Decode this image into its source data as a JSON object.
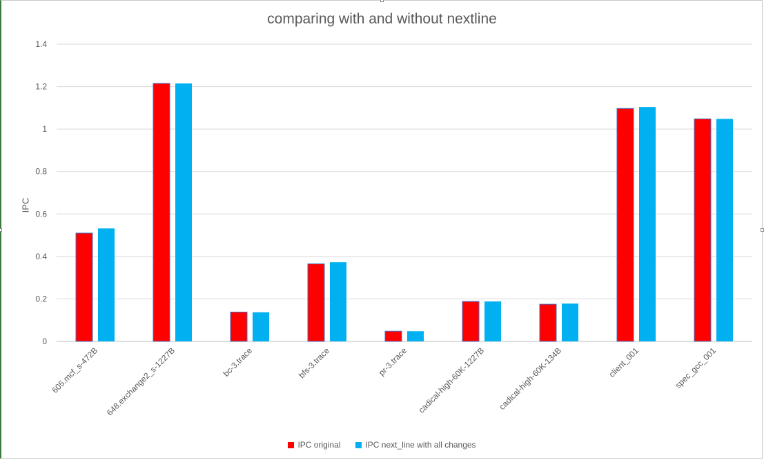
{
  "chart_data": {
    "type": "bar",
    "title": "comparing with and without nextline",
    "ylabel": "IPC",
    "xlabel": "",
    "ylim": [
      0,
      1.4
    ],
    "yticks": [
      "0",
      "0.2",
      "0.4",
      "0.6",
      "0.8",
      "1",
      "1.2",
      "1.4"
    ],
    "grid": true,
    "legend_position": "bottom",
    "categories": [
      "605.mcf_s-472B",
      "648.exchange2_s-1227B",
      "bc-3.trace",
      "bfs-3.trace",
      "pr-3.trace",
      "cadical-high-60K-1227B",
      "cadical-high-60K-134B",
      "client_001",
      "spec_gcc_001"
    ],
    "series": [
      {
        "name": "IPC original",
        "color": "#ff0000",
        "values": [
          0.51,
          1.215,
          0.138,
          0.365,
          0.048,
          0.188,
          0.175,
          1.097,
          1.048
        ]
      },
      {
        "name": "IPC next_line with all changes",
        "color": "#00b0f0",
        "values": [
          0.532,
          1.215,
          0.137,
          0.373,
          0.048,
          0.188,
          0.178,
          1.104,
          1.048
        ]
      }
    ]
  }
}
